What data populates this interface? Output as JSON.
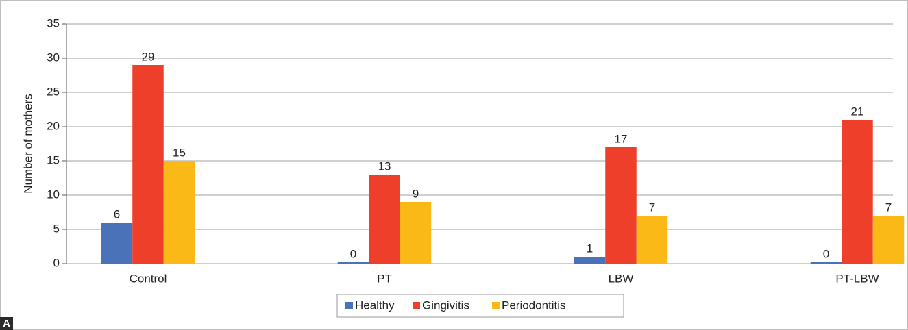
{
  "chart_data": {
    "type": "bar",
    "y_label": "Number of mothers",
    "panel_label": "A",
    "categories": [
      "Control",
      "PT",
      "LBW",
      "PT-LBW"
    ],
    "series": [
      {
        "name": "Healthy",
        "color": "#4a72b8",
        "values": [
          6,
          0,
          1,
          0
        ]
      },
      {
        "name": "Gingivitis",
        "color": "#ee3f2a",
        "values": [
          29,
          13,
          17,
          21
        ]
      },
      {
        "name": "Periodontitis",
        "color": "#fbb917",
        "values": [
          15,
          9,
          7,
          7
        ]
      }
    ],
    "ylim": [
      0,
      35
    ],
    "yticks": [
      0,
      5,
      10,
      15,
      20,
      25,
      30,
      35
    ],
    "grid": true,
    "legend": "bottom"
  }
}
